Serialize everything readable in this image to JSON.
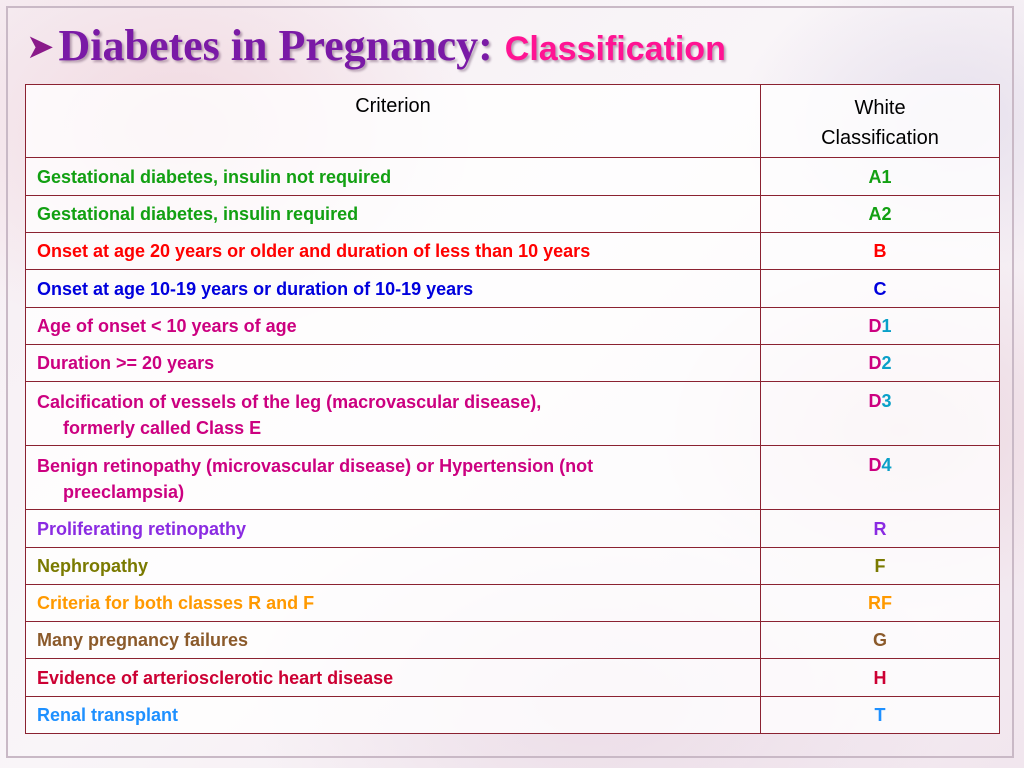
{
  "slide": {
    "title_prefix_icon": "arrow-bullet-icon",
    "title_main": "Diabetes in Pregnancy:",
    "title_sub": "Classification"
  },
  "table": {
    "headers": {
      "criterion": "Criterion",
      "classification_line1": "White",
      "classification_line2": "Classification"
    },
    "rows": [
      {
        "criterion": "Gestational diabetes, insulin not required",
        "class": "A1",
        "class_suffix": "",
        "color": "#12a012"
      },
      {
        "criterion": "Gestational diabetes, insulin required",
        "class": "A2",
        "class_suffix": "",
        "color": "#12a012"
      },
      {
        "criterion": "Onset at age 20 years or older and duration of less than 10 years",
        "class": "B",
        "class_suffix": "",
        "color": "#ff0000"
      },
      {
        "criterion": "Onset at age 10-19 years or duration of 10-19 years",
        "class": "C",
        "class_suffix": "",
        "color": "#0000dd"
      },
      {
        "criterion": "Age of onset < 10 years of age",
        "class": "D",
        "class_suffix": "1",
        "color": "#cc0080"
      },
      {
        "criterion": "Duration >= 20 years",
        "class": "D",
        "class_suffix": "2",
        "color": "#cc0080"
      },
      {
        "criterion_line1": "Calcification of vessels of the leg (macrovascular disease),",
        "criterion_line2": "formerly called Class E",
        "class": "D",
        "class_suffix": "3",
        "color": "#cc0080"
      },
      {
        "criterion_line1": "Benign retinopathy (microvascular disease) or Hypertension (not",
        "criterion_line2": "preeclampsia)",
        "class": "D",
        "class_suffix": "4",
        "color": "#cc0080"
      },
      {
        "criterion": "Proliferating retinopathy",
        "class": "R",
        "class_suffix": "",
        "color": "#8a2be2"
      },
      {
        "criterion": "Nephropathy",
        "class": "F",
        "class_suffix": "",
        "color": "#7a7a00"
      },
      {
        "criterion": "Criteria for both classes R and F",
        "class": "RF",
        "class_suffix": "",
        "color": "#ff9900"
      },
      {
        "criterion": "Many pregnancy failures",
        "class": "G",
        "class_suffix": "",
        "color": "#8b5a2b"
      },
      {
        "criterion": "Evidence of arteriosclerotic heart disease",
        "class": "H",
        "class_suffix": "",
        "color": "#cc0033"
      },
      {
        "criterion": "Renal transplant",
        "class": "T",
        "class_suffix": "",
        "color": "#1e90ff"
      }
    ],
    "suffix_color": "#0aa0c8",
    "border_color": "#8b2231"
  },
  "colors": {
    "title_main": "#7a1aa6",
    "title_sub": "#ff1493"
  }
}
